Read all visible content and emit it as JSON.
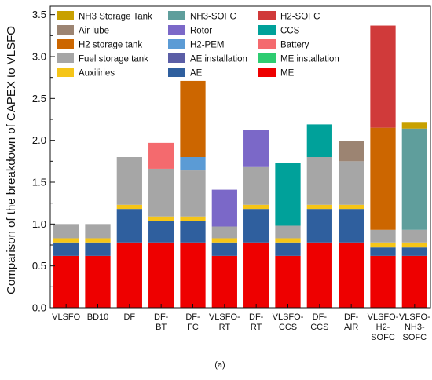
{
  "chart_data": {
    "type": "bar",
    "stacked": true,
    "ylabel": "Comparison of the breakdown of CAPEX to VLSFO",
    "xlabel": "",
    "ylim": [
      0,
      3.6
    ],
    "yticks": [
      "0.0",
      "0.5",
      "1.0",
      "1.5",
      "2.0",
      "2.5",
      "3.0",
      "3.5"
    ],
    "caption": "(a)",
    "categories": [
      [
        "VLSFO"
      ],
      [
        "BD10"
      ],
      [
        "DF"
      ],
      [
        "DF-",
        "BT"
      ],
      [
        "DF-",
        "FC"
      ],
      [
        "VLSFO-",
        "RT"
      ],
      [
        "DF-",
        "RT"
      ],
      [
        "VLSFO-",
        "CCS"
      ],
      [
        "DF-",
        "CCS"
      ],
      [
        "DF-",
        "AIR"
      ],
      [
        "VLSFO-",
        "H2-",
        "SOFC"
      ],
      [
        "VLSFO-",
        "NH3-",
        "SOFC"
      ]
    ],
    "legend": [
      [
        "NH3 Storage Tank",
        "NH3-SOFC",
        "H2-SOFC"
      ],
      [
        "Air lube",
        "Rotor",
        "CCS"
      ],
      [
        "H2 storage tank",
        "H2-PEM",
        "Battery"
      ],
      [
        "Fuel storage tank",
        "AE installation",
        "ME installation"
      ],
      [
        "Auxiliries",
        "AE",
        "ME"
      ]
    ],
    "series": [
      {
        "name": "ME",
        "color": "#ee0000",
        "values": [
          0.62,
          0.62,
          0.78,
          0.78,
          0.78,
          0.62,
          0.78,
          0.62,
          0.78,
          0.78,
          0.62,
          0.62
        ]
      },
      {
        "name": "ME installation",
        "color": "#2ecc71",
        "values": [
          0,
          0,
          0,
          0,
          0,
          0,
          0,
          0,
          0,
          0,
          0,
          0
        ]
      },
      {
        "name": "AE",
        "color": "#2f5f9e",
        "values": [
          0.16,
          0.16,
          0.4,
          0.26,
          0.26,
          0.16,
          0.4,
          0.16,
          0.4,
          0.4,
          0.1,
          0.1
        ]
      },
      {
        "name": "AE installation",
        "color": "#5b5ea6",
        "values": [
          0,
          0,
          0,
          0,
          0,
          0,
          0,
          0,
          0,
          0,
          0,
          0
        ]
      },
      {
        "name": "Auxiliries",
        "color": "#f5c518",
        "values": [
          0.05,
          0.05,
          0.05,
          0.05,
          0.05,
          0.05,
          0.05,
          0.05,
          0.05,
          0.05,
          0.06,
          0.06
        ]
      },
      {
        "name": "Fuel storage tank",
        "color": "#a6a6a6",
        "values": [
          0.17,
          0.17,
          0.57,
          0.57,
          0.55,
          0.14,
          0.45,
          0.15,
          0.57,
          0.52,
          0.15,
          0.15
        ]
      },
      {
        "name": "H2-PEM",
        "color": "#5b9bd5",
        "values": [
          0,
          0,
          0,
          0,
          0.16,
          0,
          0,
          0,
          0,
          0,
          0,
          0
        ]
      },
      {
        "name": "H2 storage tank",
        "color": "#cc6600",
        "values": [
          0,
          0,
          0,
          0,
          0.91,
          0,
          0,
          0,
          0,
          0,
          1.22,
          0
        ]
      },
      {
        "name": "Battery",
        "color": "#f46a6e",
        "values": [
          0,
          0,
          0,
          0.31,
          0,
          0,
          0,
          0,
          0,
          0,
          0,
          0
        ]
      },
      {
        "name": "CCS",
        "color": "#00a19a",
        "values": [
          0,
          0,
          0,
          0,
          0,
          0,
          0,
          0.75,
          0.39,
          0,
          0,
          0
        ]
      },
      {
        "name": "Rotor",
        "color": "#7b68c8",
        "values": [
          0,
          0,
          0,
          0,
          0,
          0.44,
          0.44,
          0,
          0,
          0,
          0,
          0
        ]
      },
      {
        "name": "Air lube",
        "color": "#9c8472",
        "values": [
          0,
          0,
          0,
          0,
          0,
          0,
          0,
          0,
          0,
          0.24,
          0,
          0
        ]
      },
      {
        "name": "H2-SOFC",
        "color": "#d03a3a",
        "values": [
          0,
          0,
          0,
          0,
          0,
          0,
          0,
          0,
          0,
          0,
          1.22,
          0
        ]
      },
      {
        "name": "NH3-SOFC",
        "color": "#5f9e9c",
        "values": [
          0,
          0,
          0,
          0,
          0,
          0,
          0,
          0,
          0,
          0,
          0,
          1.21
        ]
      },
      {
        "name": "NH3 Storage Tank",
        "color": "#c8a000",
        "values": [
          0,
          0,
          0,
          0,
          0,
          0,
          0,
          0,
          0,
          0,
          0,
          0.07
        ]
      }
    ]
  }
}
